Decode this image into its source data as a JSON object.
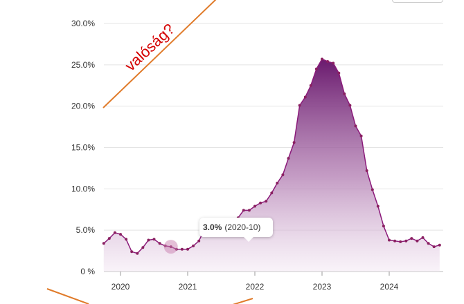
{
  "chart_data": {
    "type": "area",
    "title": "",
    "xlabel": "",
    "ylabel": "",
    "ylim": [
      0,
      30
    ],
    "yticks": [
      "0 %",
      "5.0%",
      "10.0%",
      "15.0%",
      "20.0%",
      "25.0%",
      "30.0%"
    ],
    "ytick_values": [
      0,
      5,
      10,
      15,
      20,
      25,
      30
    ],
    "xticks": [
      "2020",
      "2021",
      "2022",
      "2023",
      "2024"
    ],
    "xtick_values": [
      "2020-01",
      "2021-01",
      "2022-01",
      "2023-01",
      "2024-01"
    ],
    "xlim": [
      "2019-10",
      "2024-10"
    ],
    "grid": true,
    "series": [
      {
        "color": "#8b1a7a",
        "points": [
          [
            "2019-10",
            3.4
          ],
          [
            "2019-11",
            4.0
          ],
          [
            "2019-12",
            4.7
          ],
          [
            "2020-01",
            4.5
          ],
          [
            "2020-02",
            3.9
          ],
          [
            "2020-03",
            2.4
          ],
          [
            "2020-04",
            2.2
          ],
          [
            "2020-05",
            2.9
          ],
          [
            "2020-06",
            3.8
          ],
          [
            "2020-07",
            3.9
          ],
          [
            "2020-08",
            3.4
          ],
          [
            "2020-09",
            3.1
          ],
          [
            "2020-10",
            3.0
          ],
          [
            "2020-11",
            2.7
          ],
          [
            "2020-12",
            2.7
          ],
          [
            "2021-01",
            2.7
          ],
          [
            "2021-02",
            3.1
          ],
          [
            "2021-03",
            3.7
          ],
          [
            "2021-04",
            5.1
          ],
          [
            "2021-05",
            5.3
          ],
          [
            "2021-06",
            5.3
          ],
          [
            "2021-07",
            4.6
          ],
          [
            "2021-08",
            4.9
          ],
          [
            "2021-09",
            5.5
          ],
          [
            "2021-10",
            6.5
          ],
          [
            "2021-11",
            7.4
          ],
          [
            "2021-12",
            7.4
          ],
          [
            "2022-01",
            7.9
          ],
          [
            "2022-02",
            8.3
          ],
          [
            "2022-03",
            8.5
          ],
          [
            "2022-04",
            9.5
          ],
          [
            "2022-05",
            10.7
          ],
          [
            "2022-06",
            11.7
          ],
          [
            "2022-07",
            13.7
          ],
          [
            "2022-08",
            15.6
          ],
          [
            "2022-09",
            20.1
          ],
          [
            "2022-10",
            21.1
          ],
          [
            "2022-11",
            22.5
          ],
          [
            "2022-12",
            24.5
          ],
          [
            "2023-01",
            25.7
          ],
          [
            "2023-02",
            25.4
          ],
          [
            "2023-03",
            25.2
          ],
          [
            "2023-04",
            24.0
          ],
          [
            "2023-05",
            21.5
          ],
          [
            "2023-06",
            20.1
          ],
          [
            "2023-07",
            17.6
          ],
          [
            "2023-08",
            16.4
          ],
          [
            "2023-09",
            12.2
          ],
          [
            "2023-10",
            9.9
          ],
          [
            "2023-11",
            7.9
          ],
          [
            "2023-12",
            5.5
          ],
          [
            "2024-01",
            3.8
          ],
          [
            "2024-02",
            3.7
          ],
          [
            "2024-03",
            3.6
          ],
          [
            "2024-04",
            3.7
          ],
          [
            "2024-05",
            4.0
          ],
          [
            "2024-06",
            3.7
          ],
          [
            "2024-07",
            4.1
          ],
          [
            "2024-08",
            3.4
          ],
          [
            "2024-09",
            3.0
          ],
          [
            "2024-10",
            3.2
          ]
        ]
      }
    ],
    "tooltip": {
      "value": "3.0%",
      "period": "(2020-10)",
      "x": "2020-10",
      "y": 3.0
    },
    "annotation": {
      "text": "valóság?",
      "color": "#d40000"
    }
  }
}
